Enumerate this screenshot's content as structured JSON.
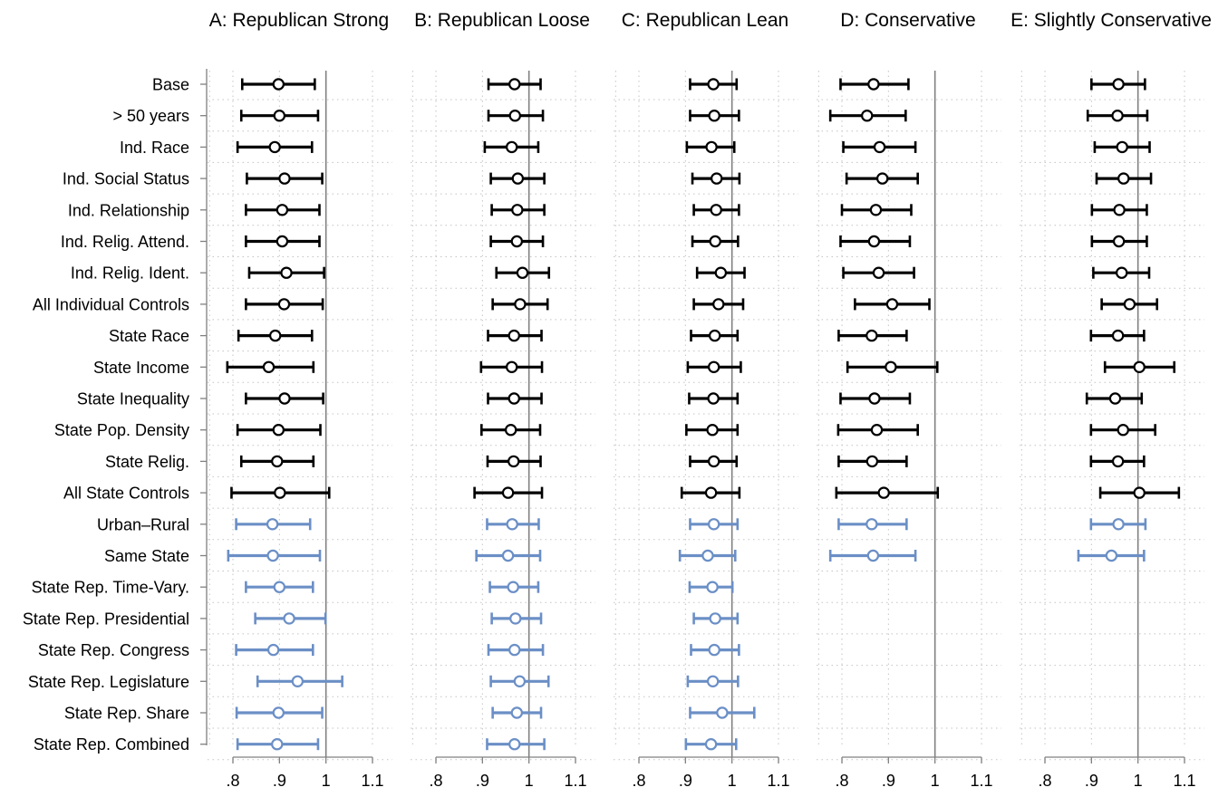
{
  "chart_data": {
    "type": "scatter",
    "subtype": "coefficient-plot-with-confidence-intervals",
    "x_ticks": [
      ".8",
      ".9",
      "1",
      "1.1"
    ],
    "x_tick_values": [
      0.8,
      0.9,
      1.0,
      1.1
    ],
    "xlim": [
      0.8,
      1.1
    ],
    "reference_line": 1.0,
    "grid": "dotted",
    "colors": {
      "primary": "#000000",
      "robustness": "#6b8fc6",
      "reference": "#808080",
      "grid": "#c4c4c4"
    },
    "rows": [
      "Base",
      "> 50 years",
      "Ind. Race",
      "Ind. Social Status",
      "Ind. Relationship",
      "Ind. Relig. Attend.",
      "Ind. Relig. Ident.",
      "All Individual Controls",
      "State Race",
      "State Income",
      "State Inequality",
      "State Pop. Density",
      "State Relig.",
      "All State Controls",
      "Urban–Rural",
      "Same State",
      "State Rep. Time-Vary.",
      "State Rep. Presidential",
      "State Rep. Congress",
      "State Rep. Legislature",
      "State Rep. Share",
      "State Rep. Combined"
    ],
    "row_groups": [
      "primary",
      "primary",
      "primary",
      "primary",
      "primary",
      "primary",
      "primary",
      "primary",
      "primary",
      "primary",
      "primary",
      "primary",
      "primary",
      "primary",
      "robustness",
      "robustness",
      "robustness",
      "robustness",
      "robustness",
      "robustness",
      "robustness",
      "robustness"
    ],
    "panels": [
      {
        "title": "A: Republican Strong",
        "estimates": [
          0.898,
          0.9,
          0.89,
          0.911,
          0.906,
          0.906,
          0.915,
          0.91,
          0.891,
          0.877,
          0.911,
          0.898,
          0.895,
          0.901,
          0.885,
          0.886,
          0.9,
          0.921,
          0.887,
          0.939,
          0.898,
          0.895
        ],
        "lower": [
          0.82,
          0.818,
          0.81,
          0.83,
          0.828,
          0.828,
          0.835,
          0.828,
          0.812,
          0.788,
          0.828,
          0.81,
          0.818,
          0.797,
          0.807,
          0.79,
          0.828,
          0.848,
          0.807,
          0.853,
          0.808,
          0.81
        ],
        "upper": [
          0.976,
          0.983,
          0.97,
          0.992,
          0.986,
          0.986,
          0.996,
          0.993,
          0.97,
          0.973,
          0.994,
          0.988,
          0.973,
          1.007,
          0.966,
          0.987,
          0.972,
          0.999,
          0.972,
          1.035,
          0.992,
          0.983
        ]
      },
      {
        "title": "B: Republican Loose",
        "estimates": [
          0.969,
          0.97,
          0.963,
          0.976,
          0.975,
          0.974,
          0.986,
          0.981,
          0.968,
          0.963,
          0.968,
          0.961,
          0.967,
          0.955,
          0.964,
          0.955,
          0.966,
          0.971,
          0.969,
          0.98,
          0.974,
          0.969
        ],
        "lower": [
          0.913,
          0.913,
          0.905,
          0.918,
          0.92,
          0.918,
          0.93,
          0.922,
          0.912,
          0.897,
          0.912,
          0.898,
          0.911,
          0.883,
          0.91,
          0.887,
          0.916,
          0.92,
          0.913,
          0.918,
          0.922,
          0.91
        ],
        "upper": [
          1.025,
          1.03,
          1.02,
          1.033,
          1.033,
          1.03,
          1.043,
          1.04,
          1.027,
          1.028,
          1.027,
          1.024,
          1.025,
          1.028,
          1.021,
          1.024,
          1.02,
          1.026,
          1.03,
          1.042,
          1.026,
          1.033
        ]
      },
      {
        "title": "C: Republican Lean",
        "estimates": [
          0.96,
          0.962,
          0.956,
          0.967,
          0.966,
          0.964,
          0.976,
          0.971,
          0.963,
          0.961,
          0.96,
          0.958,
          0.961,
          0.955,
          0.961,
          0.948,
          0.958,
          0.964,
          0.962,
          0.959,
          0.979,
          0.955
        ],
        "lower": [
          0.91,
          0.91,
          0.903,
          0.915,
          0.918,
          0.915,
          0.925,
          0.918,
          0.912,
          0.905,
          0.908,
          0.902,
          0.91,
          0.892,
          0.91,
          0.888,
          0.909,
          0.918,
          0.912,
          0.905,
          0.91,
          0.901
        ],
        "upper": [
          1.01,
          1.015,
          1.005,
          1.016,
          1.015,
          1.013,
          1.027,
          1.024,
          1.012,
          1.019,
          1.012,
          1.012,
          1.01,
          1.016,
          1.012,
          1.007,
          1.001,
          1.012,
          1.015,
          1.013,
          1.048,
          1.009
        ]
      },
      {
        "title": "D: Conservative",
        "estimates": [
          0.868,
          0.854,
          0.881,
          0.887,
          0.873,
          0.869,
          0.879,
          0.908,
          0.864,
          0.905,
          0.87,
          0.875,
          0.865,
          0.89,
          0.864,
          0.867
        ],
        "lower": [
          0.797,
          0.775,
          0.803,
          0.81,
          0.8,
          0.797,
          0.803,
          0.828,
          0.793,
          0.812,
          0.797,
          0.792,
          0.793,
          0.788,
          0.793,
          0.775
        ],
        "upper": [
          0.943,
          0.937,
          0.958,
          0.963,
          0.949,
          0.946,
          0.955,
          0.988,
          0.939,
          1.005,
          0.946,
          0.963,
          0.939,
          1.006,
          0.939,
          0.958
        ]
      },
      {
        "title": "E: Slightly Conservative",
        "estimates": [
          0.958,
          0.956,
          0.966,
          0.969,
          0.96,
          0.959,
          0.965,
          0.982,
          0.957,
          1.003,
          0.951,
          0.968,
          0.957,
          1.003,
          0.958,
          0.943
        ],
        "lower": [
          0.9,
          0.892,
          0.907,
          0.911,
          0.901,
          0.901,
          0.904,
          0.922,
          0.899,
          0.929,
          0.89,
          0.899,
          0.899,
          0.919,
          0.899,
          0.872
        ],
        "upper": [
          1.015,
          1.02,
          1.025,
          1.028,
          1.019,
          1.019,
          1.024,
          1.041,
          1.013,
          1.078,
          1.008,
          1.037,
          1.013,
          1.088,
          1.016,
          1.013
        ]
      }
    ]
  }
}
